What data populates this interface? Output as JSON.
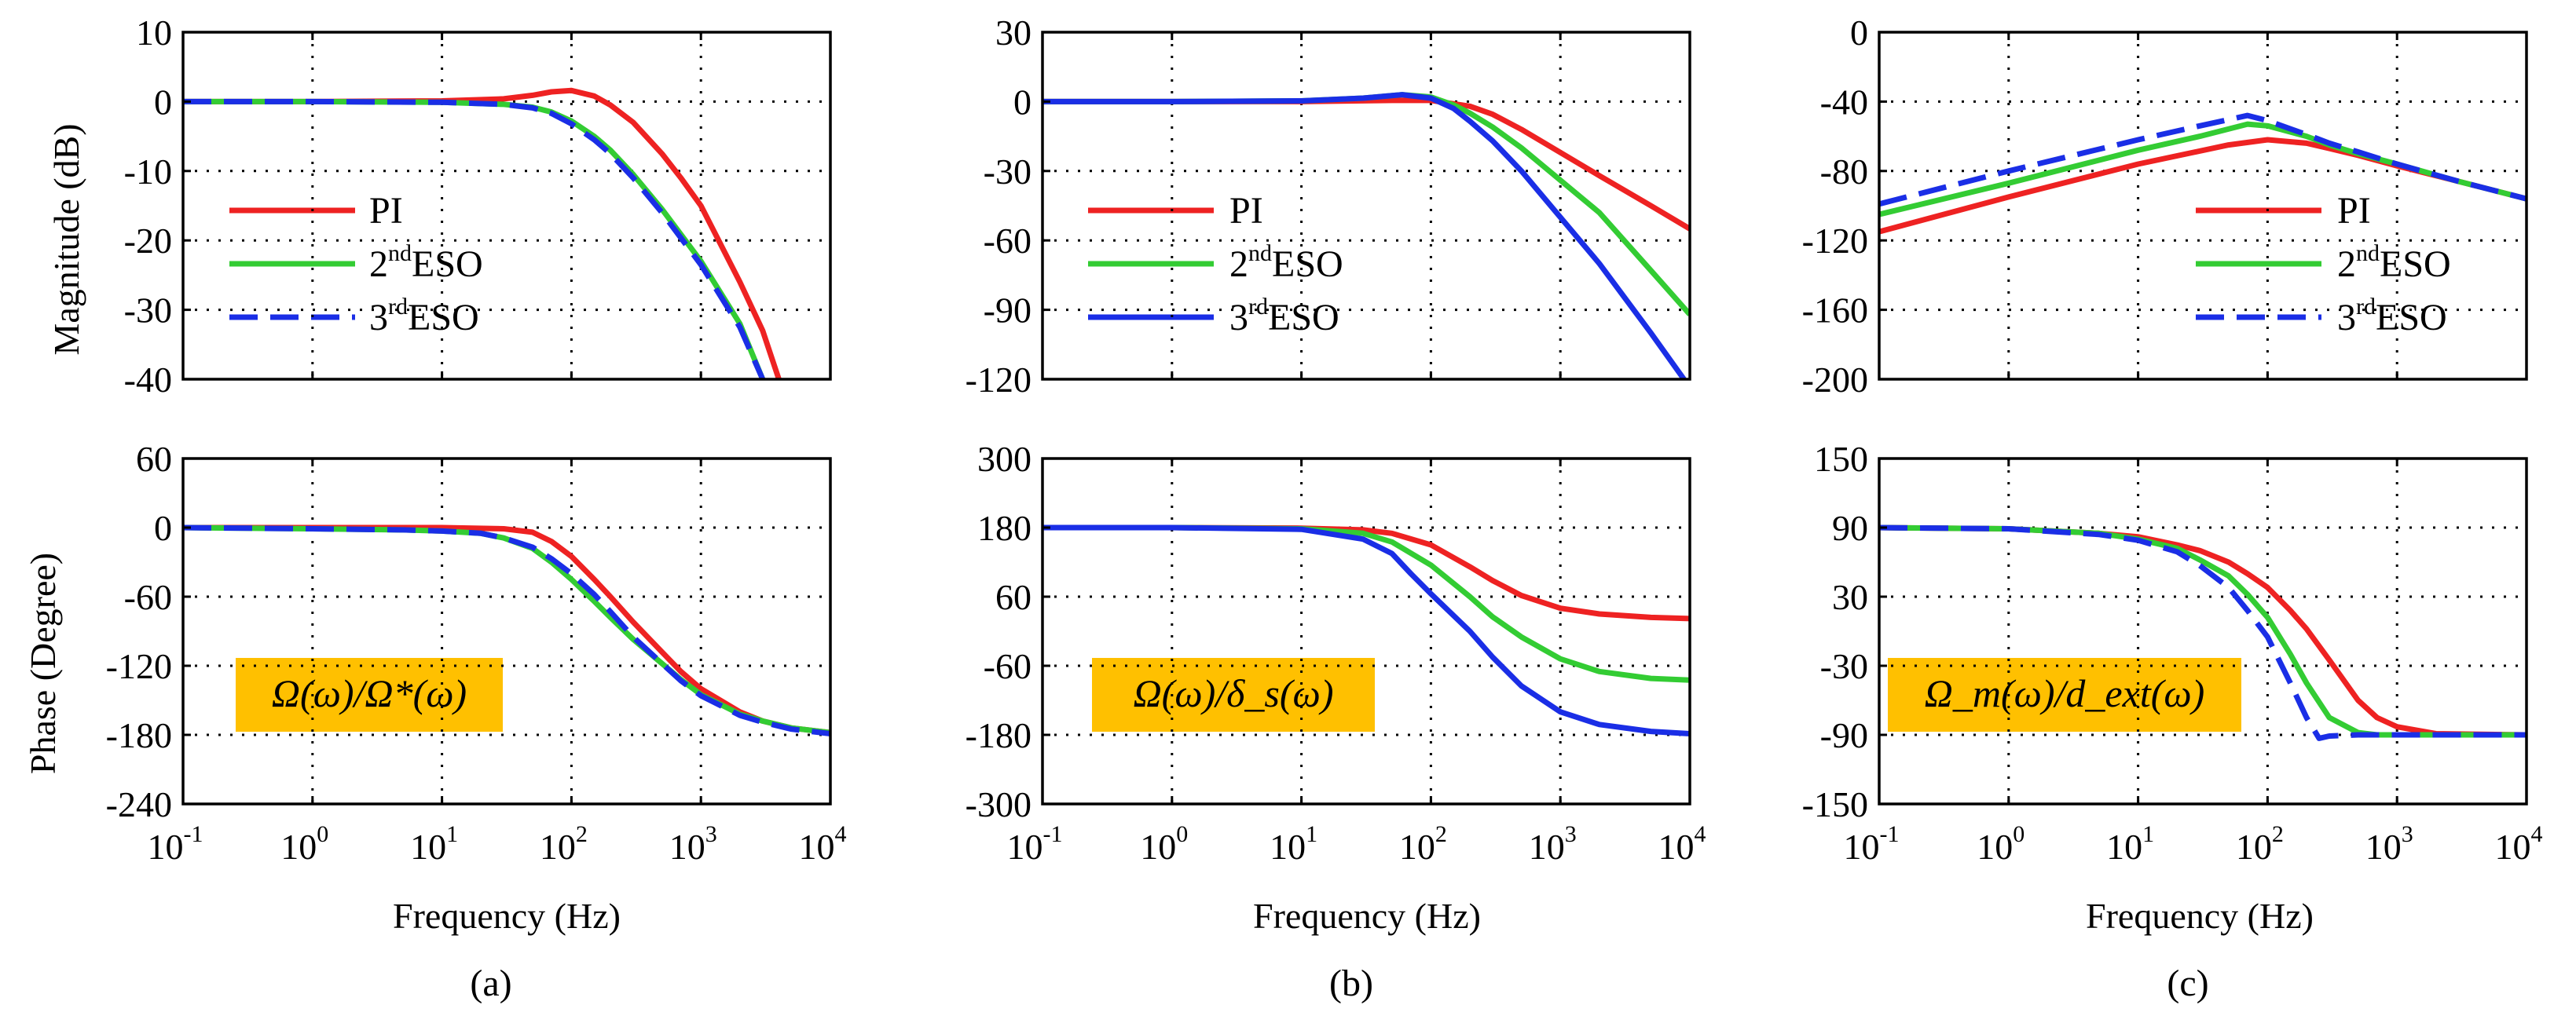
{
  "chart_data": [
    {
      "id": "a-mag",
      "type": "line",
      "ylabel": "Magnitude (dB)",
      "ylim": [
        -40,
        10
      ],
      "yticks": [
        "10",
        "0",
        "-10",
        "-20",
        "-30",
        "-40"
      ],
      "xscale": "log",
      "xlim": [
        0.1,
        10000
      ],
      "grid": true,
      "series": [
        {
          "name": "PI",
          "color": "#ee2222",
          "dash": false,
          "x": [
            0.1,
            1,
            10,
            30,
            50,
            70,
            100,
            150,
            200,
            300,
            500,
            700,
            1000,
            2000,
            3000,
            4000
          ],
          "y": [
            0,
            0,
            0.1,
            0.4,
            0.9,
            1.4,
            1.6,
            0.8,
            -0.5,
            -3,
            -7.5,
            -11,
            -15,
            -26,
            -33,
            -40
          ]
        },
        {
          "name": "2ndESO",
          "color": "#33cc33",
          "dash": false,
          "x": [
            0.1,
            1,
            10,
            30,
            50,
            70,
            100,
            150,
            200,
            300,
            500,
            1000,
            2000,
            3000
          ],
          "y": [
            0,
            0,
            -0.1,
            -0.4,
            -0.8,
            -1.5,
            -2.8,
            -5,
            -7,
            -10.5,
            -15.5,
            -23,
            -32,
            -40
          ]
        },
        {
          "name": "3rdESO",
          "color": "#1a2ee6",
          "dash": true,
          "x": [
            0.1,
            1,
            10,
            30,
            50,
            70,
            100,
            150,
            200,
            300,
            500,
            1000,
            2000,
            3000
          ],
          "y": [
            0,
            0,
            -0.1,
            -0.4,
            -0.9,
            -1.7,
            -3.2,
            -5.5,
            -7.5,
            -11,
            -16,
            -23.5,
            -32.5,
            -40
          ]
        }
      ]
    },
    {
      "id": "a-phase",
      "type": "line",
      "ylabel": "Phase (Degree)",
      "xlabel": "Frequency (Hz)",
      "ylim": [
        -240,
        60
      ],
      "yticks": [
        "60",
        "0",
        "-60",
        "-120",
        "-180",
        "-240"
      ],
      "xscale": "log",
      "xlim": [
        0.1,
        10000
      ],
      "grid": true,
      "series": [
        {
          "name": "PI",
          "color": "#ee2222",
          "dash": false,
          "x": [
            0.1,
            1,
            10,
            30,
            50,
            70,
            100,
            150,
            200,
            300,
            500,
            700,
            1000,
            2000,
            3000,
            5000,
            10000
          ],
          "y": [
            0,
            0,
            0,
            -1,
            -4,
            -12,
            -25,
            -45,
            -60,
            -82,
            -108,
            -125,
            -140,
            -160,
            -168,
            -174,
            -178
          ]
        },
        {
          "name": "2ndESO",
          "color": "#33cc33",
          "dash": false,
          "x": [
            0.1,
            1,
            5,
            10,
            20,
            30,
            50,
            70,
            100,
            150,
            200,
            300,
            500,
            700,
            1000,
            2000,
            3000,
            5000,
            10000
          ],
          "y": [
            0,
            -1,
            -2,
            -3,
            -5,
            -9,
            -18,
            -30,
            -45,
            -64,
            -78,
            -97,
            -118,
            -132,
            -145,
            -162,
            -168,
            -174,
            -178
          ]
        },
        {
          "name": "3rdESO",
          "color": "#1a2ee6",
          "dash": true,
          "x": [
            0.1,
            1,
            5,
            10,
            20,
            30,
            50,
            70,
            100,
            150,
            200,
            300,
            500,
            700,
            1000,
            2000,
            3000,
            5000,
            10000
          ],
          "y": [
            0,
            -1,
            -2,
            -3,
            -5,
            -9,
            -17,
            -27,
            -40,
            -58,
            -73,
            -95,
            -118,
            -133,
            -146,
            -163,
            -169,
            -175,
            -179
          ]
        }
      ]
    },
    {
      "id": "b-mag",
      "type": "line",
      "ylim": [
        -120,
        30
      ],
      "yticks": [
        "30",
        "0",
        "-30",
        "-60",
        "-90",
        "-120"
      ],
      "xscale": "log",
      "xlim": [
        0.1,
        10000
      ],
      "grid": true,
      "series": [
        {
          "name": "PI",
          "color": "#ee2222",
          "dash": false,
          "x": [
            0.1,
            1,
            10,
            50,
            100,
            200,
            300,
            500,
            1000,
            2000,
            5000,
            10000
          ],
          "y": [
            0,
            0,
            0,
            0.5,
            0.5,
            -2,
            -5.5,
            -12,
            -22,
            -32,
            -45,
            -55
          ]
        },
        {
          "name": "2ndESO",
          "color": "#33cc33",
          "dash": false,
          "x": [
            0.1,
            1,
            10,
            30,
            60,
            100,
            150,
            200,
            300,
            500,
            1000,
            2000,
            5000,
            10000
          ],
          "y": [
            0,
            0,
            0.3,
            1.5,
            3,
            2,
            -1.5,
            -5,
            -11,
            -20,
            -34,
            -48,
            -73,
            -92
          ]
        },
        {
          "name": "3rdESO",
          "color": "#1a2ee6",
          "dash": false,
          "x": [
            0.1,
            1,
            10,
            30,
            60,
            100,
            150,
            200,
            300,
            500,
            1000,
            2000,
            5000,
            9000
          ],
          "y": [
            0,
            0,
            0.3,
            1.5,
            3,
            1.5,
            -3,
            -8.5,
            -17,
            -30,
            -50,
            -70,
            -100,
            -120
          ]
        }
      ]
    },
    {
      "id": "b-phase",
      "type": "line",
      "xlabel": "Frequency (Hz)",
      "ylim": [
        -300,
        300
      ],
      "yticks": [
        "300",
        "180",
        "60",
        "-60",
        "-180",
        "-300"
      ],
      "xscale": "log",
      "xlim": [
        0.1,
        10000
      ],
      "grid": true,
      "series": [
        {
          "name": "PI",
          "color": "#ee2222",
          "dash": false,
          "x": [
            0.1,
            1,
            10,
            30,
            50,
            100,
            200,
            300,
            500,
            1000,
            2000,
            5000,
            10000
          ],
          "y": [
            180,
            180,
            179,
            176,
            170,
            150,
            112,
            88,
            62,
            40,
            30,
            24,
            22
          ]
        },
        {
          "name": "2ndESO",
          "color": "#33cc33",
          "dash": false,
          "x": [
            0.1,
            1,
            10,
            30,
            50,
            100,
            200,
            300,
            500,
            1000,
            2000,
            5000,
            10000
          ],
          "y": [
            180,
            180,
            178,
            170,
            155,
            115,
            60,
            25,
            -10,
            -48,
            -70,
            -82,
            -85
          ]
        },
        {
          "name": "3rdESO",
          "color": "#1a2ee6",
          "dash": false,
          "x": [
            0.1,
            1,
            10,
            30,
            50,
            70,
            100,
            200,
            300,
            500,
            1000,
            2000,
            5000,
            10000
          ],
          "y": [
            180,
            180,
            177,
            160,
            135,
            100,
            65,
            0,
            -45,
            -95,
            -140,
            -162,
            -174,
            -178
          ]
        }
      ]
    },
    {
      "id": "c-mag",
      "type": "line",
      "ylim": [
        -200,
        0
      ],
      "yticks": [
        "0",
        "-40",
        "-80",
        "-120",
        "-160",
        "-200"
      ],
      "xscale": "log",
      "xlim": [
        0.1,
        10000
      ],
      "grid": true,
      "series": [
        {
          "name": "PI",
          "color": "#ee2222",
          "dash": false,
          "x": [
            0.1,
            1,
            10,
            50,
            100,
            200,
            300,
            500,
            1000,
            3000,
            10000
          ],
          "y": [
            -115,
            -95,
            -76,
            -65,
            -62,
            -64,
            -67,
            -71,
            -77,
            -86,
            -96
          ]
        },
        {
          "name": "2ndESO",
          "color": "#33cc33",
          "dash": false,
          "x": [
            0.1,
            1,
            10,
            30,
            70,
            100,
            200,
            300,
            500,
            1000,
            3000,
            10000
          ],
          "y": [
            -105,
            -87,
            -68,
            -60,
            -53,
            -54,
            -60,
            -65,
            -70,
            -76,
            -86,
            -96
          ]
        },
        {
          "name": "3rdESO",
          "color": "#1a2ee6",
          "dash": true,
          "x": [
            0.1,
            1,
            10,
            30,
            70,
            100,
            200,
            300,
            500,
            1000,
            3000,
            10000
          ],
          "y": [
            -99,
            -80,
            -62,
            -54,
            -48,
            -51,
            -59,
            -64,
            -69,
            -76,
            -86,
            -96
          ]
        }
      ]
    },
    {
      "id": "c-phase",
      "type": "line",
      "xlabel": "Frequency (Hz)",
      "ylim": [
        -150,
        150
      ],
      "yticks": [
        "150",
        "90",
        "30",
        "-30",
        "-90",
        "-150"
      ],
      "xscale": "log",
      "xlim": [
        0.1,
        10000
      ],
      "grid": true,
      "series": [
        {
          "name": "PI",
          "color": "#ee2222",
          "dash": false,
          "x": [
            0.1,
            1,
            5,
            10,
            20,
            30,
            50,
            70,
            100,
            150,
            200,
            300,
            500,
            700,
            1000,
            2000,
            10000
          ],
          "y": [
            90,
            89,
            85,
            82,
            75,
            70,
            60,
            50,
            38,
            18,
            2,
            -25,
            -60,
            -75,
            -83,
            -89,
            -90
          ]
        },
        {
          "name": "2ndESO",
          "color": "#33cc33",
          "dash": false,
          "x": [
            0.1,
            1,
            5,
            10,
            20,
            30,
            50,
            70,
            100,
            150,
            200,
            300,
            500,
            700,
            1000,
            10000
          ],
          "y": [
            90,
            89,
            85,
            80,
            72,
            62,
            48,
            32,
            12,
            -20,
            -45,
            -75,
            -88,
            -90,
            -90,
            -90
          ]
        },
        {
          "name": "3rdESO",
          "color": "#1a2ee6",
          "dash": true,
          "x": [
            0.1,
            1,
            5,
            10,
            20,
            30,
            50,
            70,
            100,
            150,
            200,
            250,
            300,
            500,
            1000,
            10000
          ],
          "y": [
            90,
            89,
            84,
            79,
            69,
            57,
            38,
            18,
            -5,
            -45,
            -75,
            -93,
            -91,
            -90,
            -90,
            -90
          ]
        }
      ]
    }
  ],
  "xaxis": {
    "label": "Frequency (Hz)",
    "ticks": [
      {
        "base": "10",
        "exp": "-1"
      },
      {
        "base": "10",
        "exp": "0"
      },
      {
        "base": "10",
        "exp": "1"
      },
      {
        "base": "10",
        "exp": "2"
      },
      {
        "base": "10",
        "exp": "3"
      },
      {
        "base": "10",
        "exp": "4"
      }
    ]
  },
  "legends": {
    "a": [
      {
        "label": "PI",
        "sup": ""
      },
      {
        "label": "ESO",
        "sup": "nd",
        "prefix": "2"
      },
      {
        "label": "ESO",
        "sup": "rd",
        "prefix": "3"
      }
    ],
    "b": [
      {
        "label": "PI",
        "sup": ""
      },
      {
        "label": "ESO",
        "sup": "nd",
        "prefix": "2"
      },
      {
        "label": "ESO",
        "sup": "rd",
        "prefix": "3"
      }
    ],
    "c": [
      {
        "label": "PI",
        "sup": ""
      },
      {
        "label": "ESO",
        "sup": "nd",
        "prefix": "2"
      },
      {
        "label": "ESO",
        "sup": "rd",
        "prefix": "3"
      }
    ]
  },
  "formulas": {
    "a": "Ω(ω)/Ω*(ω)",
    "b": "Ω(ω)/δ_s(ω)",
    "c": "Ω_m(ω)/d_ext(ω)"
  },
  "formula_style": {
    "background": "#ffc000"
  },
  "panel_labels": {
    "a": "(a)",
    "b": "(b)",
    "c": "(c)"
  }
}
